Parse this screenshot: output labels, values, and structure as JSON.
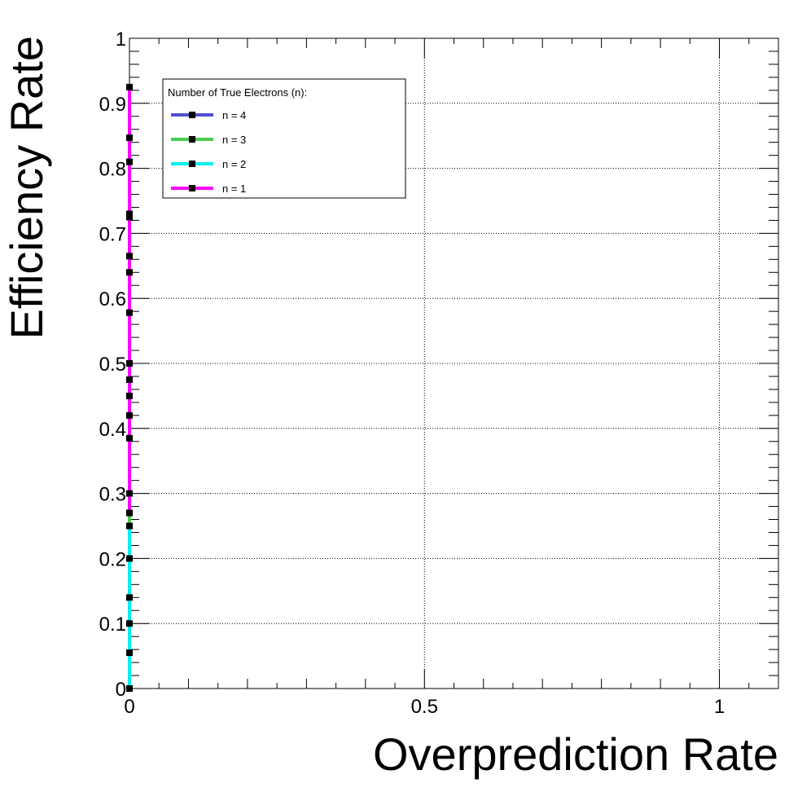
{
  "chart_data": {
    "type": "line",
    "title": "",
    "xlabel": "Overprediction Rate",
    "ylabel": "Efficiency Rate",
    "xlim": [
      0,
      1.1
    ],
    "ylim": [
      0,
      1
    ],
    "grid": true,
    "x_ticks": [
      {
        "value": 0,
        "label": "0"
      },
      {
        "value": 0.5,
        "label": "0.5"
      },
      {
        "value": 1,
        "label": "1"
      }
    ],
    "y_ticks": [
      {
        "value": 0,
        "label": "0"
      },
      {
        "value": 0.1,
        "label": "0.1"
      },
      {
        "value": 0.2,
        "label": "0.2"
      },
      {
        "value": 0.3,
        "label": "0.3"
      },
      {
        "value": 0.4,
        "label": "0.4"
      },
      {
        "value": 0.5,
        "label": "0.5"
      },
      {
        "value": 0.6,
        "label": "0.6"
      },
      {
        "value": 0.7,
        "label": "0.7"
      },
      {
        "value": 0.8,
        "label": "0.8"
      },
      {
        "value": 0.9,
        "label": "0.9"
      },
      {
        "value": 1,
        "label": "1"
      }
    ],
    "legend": {
      "title": "Number of True Electrons (n):",
      "position": "top-left"
    },
    "series": [
      {
        "name": "n = 4",
        "color": "#5050d0",
        "points": [
          {
            "x": 0,
            "y": 0.0
          },
          {
            "x": 0,
            "y": 0.25
          }
        ]
      },
      {
        "name": "n = 3",
        "color": "#4ccc4c",
        "points": [
          {
            "x": 0,
            "y": 0.0
          },
          {
            "x": 0,
            "y": 0.27
          }
        ]
      },
      {
        "name": "n = 2",
        "color": "#00f0f0",
        "points": [
          {
            "x": 0,
            "y": 0.0
          },
          {
            "x": 0,
            "y": 0.055
          },
          {
            "x": 0,
            "y": 0.1
          },
          {
            "x": 0,
            "y": 0.14
          },
          {
            "x": 0,
            "y": 0.2
          },
          {
            "x": 0,
            "y": 0.25
          }
        ]
      },
      {
        "name": "n = 1",
        "color": "#ff00ff",
        "points": [
          {
            "x": 0,
            "y": 0.27
          },
          {
            "x": 0,
            "y": 0.3
          },
          {
            "x": 0,
            "y": 0.385
          },
          {
            "x": 0,
            "y": 0.42
          },
          {
            "x": 0,
            "y": 0.45
          },
          {
            "x": 0,
            "y": 0.475
          },
          {
            "x": 0,
            "y": 0.5
          },
          {
            "x": 0,
            "y": 0.578
          },
          {
            "x": 0,
            "y": 0.64
          },
          {
            "x": 0,
            "y": 0.665
          },
          {
            "x": 0,
            "y": 0.725
          },
          {
            "x": 0,
            "y": 0.73
          },
          {
            "x": 0,
            "y": 0.81
          },
          {
            "x": 0,
            "y": 0.847
          },
          {
            "x": 0,
            "y": 0.925
          }
        ]
      }
    ]
  }
}
